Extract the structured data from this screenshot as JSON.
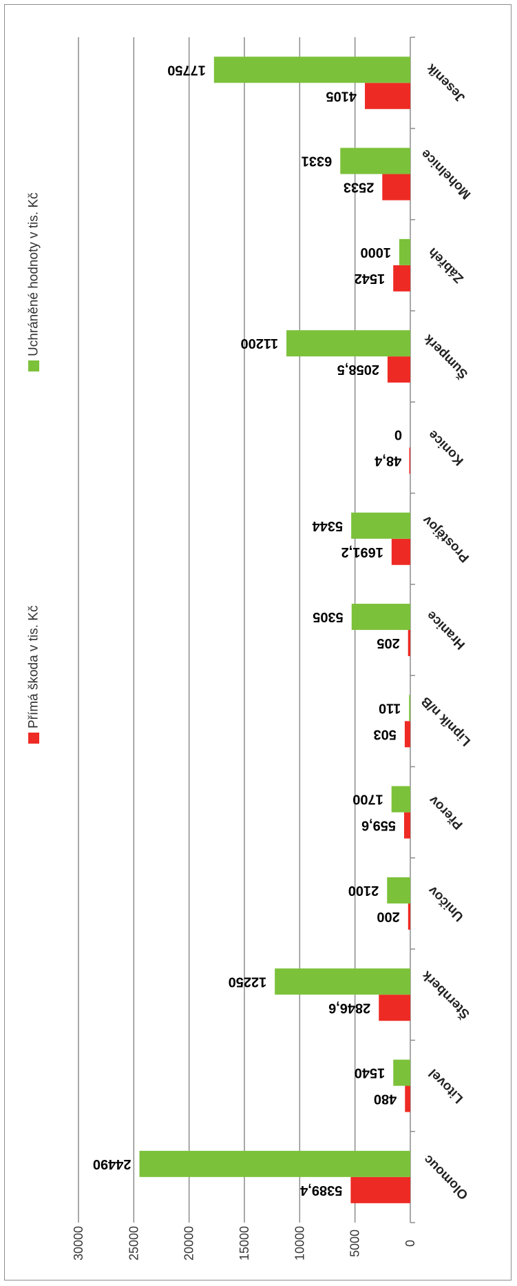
{
  "chart_data": {
    "type": "bar",
    "orientation": "rotated-180",
    "categories": [
      "Olomouc",
      "Litovel",
      "Šternberk",
      "Uničov",
      "Přerov",
      "Lipník n/B",
      "Hranice",
      "Prostějov",
      "Konice",
      "Šumperk",
      "Zábřeh",
      "Mohelnice",
      "Jeseník"
    ],
    "series": [
      {
        "name": "Přímá škoda v tis. Kč",
        "color": "#ee2a24",
        "values": [
          5389.4,
          480,
          2846.6,
          200,
          559.6,
          503,
          205,
          1691.2,
          48.4,
          2058.5,
          1542,
          2533,
          4105
        ],
        "labels": [
          "5389,4",
          "480",
          "2846,6",
          "200",
          "559,6",
          "503",
          "205",
          "1691,2",
          "48,4",
          "2058,5",
          "1542",
          "2533",
          "4105"
        ]
      },
      {
        "name": "Uchráněné hodnoty v tis. Kč",
        "color": "#7cc13a",
        "values": [
          24490,
          1540,
          12250,
          2100,
          1700,
          110,
          5305,
          5344,
          0,
          11200,
          1000,
          6331,
          17750
        ],
        "labels": [
          "24490",
          "1540",
          "12250",
          "2100",
          "1700",
          "110",
          "5305",
          "5344",
          "0",
          "11200",
          "1000",
          "6331",
          "17750"
        ]
      }
    ],
    "value_axis": {
      "min": 0,
      "max": 30000,
      "ticks": [
        0,
        5000,
        10000,
        15000,
        20000,
        25000,
        30000
      ],
      "tick_labels": [
        "0",
        "5000",
        "10000",
        "15000",
        "20000",
        "25000",
        "30000"
      ]
    },
    "grid": true,
    "legend_position": "top"
  }
}
